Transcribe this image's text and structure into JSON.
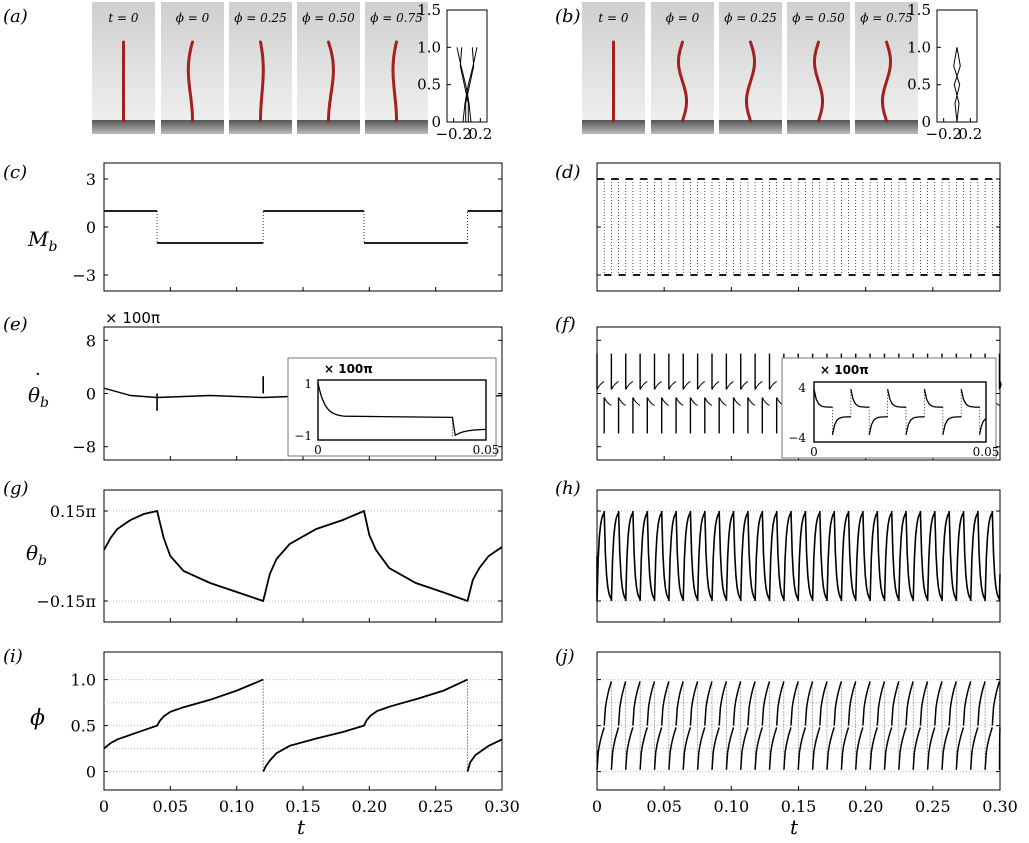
{
  "figure": {
    "panel_labels": {
      "a": "(a)",
      "b": "(b)",
      "c": "(c)",
      "d": "(d)",
      "e": "(e)",
      "f": "(f)",
      "g": "(g)",
      "h": "(h)",
      "i": "(i)",
      "j": "(j)"
    },
    "snapshot_labels": [
      "t = 0",
      "ϕ = 0",
      "ϕ = 0.25",
      "ϕ = 0.50",
      "ϕ = 0.75"
    ],
    "ylabels": {
      "c": "M_b",
      "e": "θ̇_b",
      "g": "θ_b",
      "i": "ϕ"
    },
    "xlabel": "t",
    "multiplier": {
      "main": "× 100π",
      "inset": "× 100π"
    },
    "colors": {
      "filament": "#a3201f",
      "line": "#000000",
      "grid": "#bbbbbb",
      "panel_bg": "#dddddd"
    }
  },
  "chart_data": [
    {
      "id": "a-shape",
      "type": "line",
      "xticks": [
        "−0.2",
        "0.2"
      ],
      "yticks": [
        "0",
        "0.5",
        "1.0",
        "1.5"
      ],
      "xlim": [
        -0.3,
        0.3
      ],
      "ylim": [
        0,
        1.5
      ],
      "series": [
        {
          "x": [
            -0.15,
            -0.09,
            -0.02,
            0.03,
            0.06
          ],
          "y": [
            1.0,
            0.75,
            0.5,
            0.25,
            0
          ]
        },
        {
          "x": [
            0.15,
            0.09,
            0.02,
            -0.03,
            -0.06
          ],
          "y": [
            1.0,
            0.75,
            0.5,
            0.25,
            0
          ]
        },
        {
          "x": [
            -0.08,
            -0.1,
            -0.04,
            0.02,
            0.02
          ],
          "y": [
            1.0,
            0.75,
            0.5,
            0.25,
            0
          ]
        },
        {
          "x": [
            0.08,
            0.1,
            0.04,
            -0.02,
            -0.02
          ],
          "y": [
            1.0,
            0.75,
            0.5,
            0.25,
            0
          ]
        }
      ]
    },
    {
      "id": "b-shape",
      "type": "line",
      "xticks": [
        "−0.2",
        "0.2"
      ],
      "yticks": [
        "0",
        "0.5",
        "1.0",
        "1.5"
      ],
      "xlim": [
        -0.3,
        0.3
      ],
      "ylim": [
        0,
        1.5
      ],
      "series": [
        {
          "x": [
            0.0,
            -0.05,
            0.04,
            -0.03,
            0.0
          ],
          "y": [
            1.0,
            0.75,
            0.5,
            0.25,
            0
          ]
        },
        {
          "x": [
            0.0,
            0.05,
            -0.04,
            0.03,
            0.0
          ],
          "y": [
            1.0,
            0.75,
            0.5,
            0.25,
            0
          ]
        }
      ]
    },
    {
      "id": "c",
      "type": "line",
      "xlim": [
        0,
        0.3
      ],
      "ylim": [
        -4,
        4
      ],
      "yticks": [
        {
          "v": 3,
          "label": "3"
        },
        {
          "v": 0,
          "label": "0"
        },
        {
          "v": -3,
          "label": "−3"
        }
      ],
      "x": [
        0,
        0.04,
        0.04,
        0.12,
        0.12,
        0.196,
        0.196,
        0.274,
        0.274,
        0.3
      ],
      "y": [
        1,
        1,
        -1,
        -1,
        1,
        1,
        -1,
        -1,
        1,
        1
      ]
    },
    {
      "id": "d",
      "type": "line",
      "xlim": [
        0,
        0.3
      ],
      "ylim": [
        -4,
        4
      ],
      "levels": [
        3,
        -3
      ],
      "period": 0.0107
    },
    {
      "id": "e",
      "type": "line",
      "xlim": [
        0,
        0.3
      ],
      "ylim": [
        -10,
        10
      ],
      "yticks": [
        {
          "v": 8,
          "label": "8"
        },
        {
          "v": 0,
          "label": "0"
        },
        {
          "v": -8,
          "label": "−8"
        }
      ],
      "baseline": [
        0,
        0.02,
        0.04,
        0.08,
        0.12,
        0.16,
        0.196,
        0.24,
        0.274,
        0.3
      ],
      "baseline_y": [
        0.8,
        -0.3,
        -0.6,
        -0.3,
        -0.6,
        -0.3,
        -0.6,
        -0.3,
        -0.6,
        -0.3
      ],
      "spikes": [
        {
          "x": 0.04,
          "y": -2.6
        },
        {
          "x": 0.12,
          "y": 2.6
        },
        {
          "x": 0.196,
          "y": -2.6
        },
        {
          "x": 0.274,
          "y": 2.6
        }
      ],
      "inset": {
        "xticks": [
          "0",
          "0.05"
        ],
        "yticks": [
          "1",
          "−1"
        ],
        "xlim": [
          0,
          0.05
        ],
        "ylim": [
          -1.1,
          1.1
        ],
        "switch_x": 0.04
      }
    },
    {
      "id": "f",
      "type": "line",
      "xlim": [
        0,
        0.3
      ],
      "ylim": [
        -10,
        10
      ],
      "spike_top": 6.0,
      "spike_bottom": -6.0,
      "period": 0.0107,
      "inset": {
        "xticks": [
          "0",
          "0.05"
        ],
        "yticks": [
          "4",
          "−4"
        ],
        "xlim": [
          0,
          0.05
        ],
        "ylim": [
          -5,
          5
        ]
      }
    },
    {
      "id": "g",
      "type": "line",
      "xlim": [
        0,
        0.3
      ],
      "ylim": [
        -0.22,
        0.22
      ],
      "yticks": [
        {
          "v": 0.15,
          "label": "0.15π"
        },
        {
          "v": -0.15,
          "label": "−0.15π"
        }
      ],
      "x": [
        0,
        0.005,
        0.01,
        0.02,
        0.03,
        0.04,
        0.045,
        0.05,
        0.06,
        0.08,
        0.1,
        0.12,
        0.125,
        0.13,
        0.14,
        0.16,
        0.18,
        0.196,
        0.2,
        0.205,
        0.215,
        0.235,
        0.255,
        0.274,
        0.278,
        0.283,
        0.29,
        0.3
      ],
      "y": [
        0.02,
        0.06,
        0.09,
        0.12,
        0.14,
        0.15,
        0.06,
        0.0,
        -0.05,
        -0.09,
        -0.12,
        -0.15,
        -0.06,
        -0.01,
        0.04,
        0.09,
        0.12,
        0.15,
        0.07,
        0.02,
        -0.04,
        -0.09,
        -0.12,
        -0.15,
        -0.08,
        -0.04,
        0.0,
        0.03
      ]
    },
    {
      "id": "h",
      "type": "line",
      "xlim": [
        0,
        0.3
      ],
      "ylim": [
        -0.22,
        0.22
      ],
      "amplitude": 0.15,
      "period": 0.0107
    },
    {
      "id": "i",
      "type": "line",
      "xlim": [
        0,
        0.3
      ],
      "ylim": [
        -0.2,
        1.3
      ],
      "xticks": [
        "0",
        "0.05",
        "0.10",
        "0.15",
        "0.20",
        "0.25",
        "0.30"
      ],
      "yticks": [
        {
          "v": 1.0,
          "label": "1.0"
        },
        {
          "v": 0.5,
          "label": "0.5"
        },
        {
          "v": 0,
          "label": "0"
        }
      ],
      "x": [
        0,
        0.005,
        0.01,
        0.02,
        0.03,
        0.04,
        0.042,
        0.045,
        0.05,
        0.06,
        0.08,
        0.1,
        0.12,
        0.12,
        0.122,
        0.125,
        0.13,
        0.14,
        0.16,
        0.18,
        0.196,
        0.198,
        0.201,
        0.206,
        0.216,
        0.236,
        0.256,
        0.274,
        0.274,
        0.276,
        0.28,
        0.29,
        0.3
      ],
      "y": [
        0.25,
        0.31,
        0.35,
        0.4,
        0.45,
        0.5,
        0.55,
        0.6,
        0.65,
        0.7,
        0.78,
        0.88,
        1.0,
        0.0,
        0.06,
        0.12,
        0.2,
        0.28,
        0.36,
        0.43,
        0.5,
        0.56,
        0.61,
        0.66,
        0.71,
        0.79,
        0.88,
        1.0,
        0.0,
        0.1,
        0.18,
        0.28,
        0.35
      ]
    },
    {
      "id": "j",
      "type": "line",
      "xlim": [
        0,
        0.3
      ],
      "ylim": [
        -0.2,
        1.3
      ],
      "xticks": [
        "0",
        "0.05",
        "0.10",
        "0.15",
        "0.20",
        "0.25",
        "0.30"
      ],
      "period": 0.0107
    }
  ]
}
